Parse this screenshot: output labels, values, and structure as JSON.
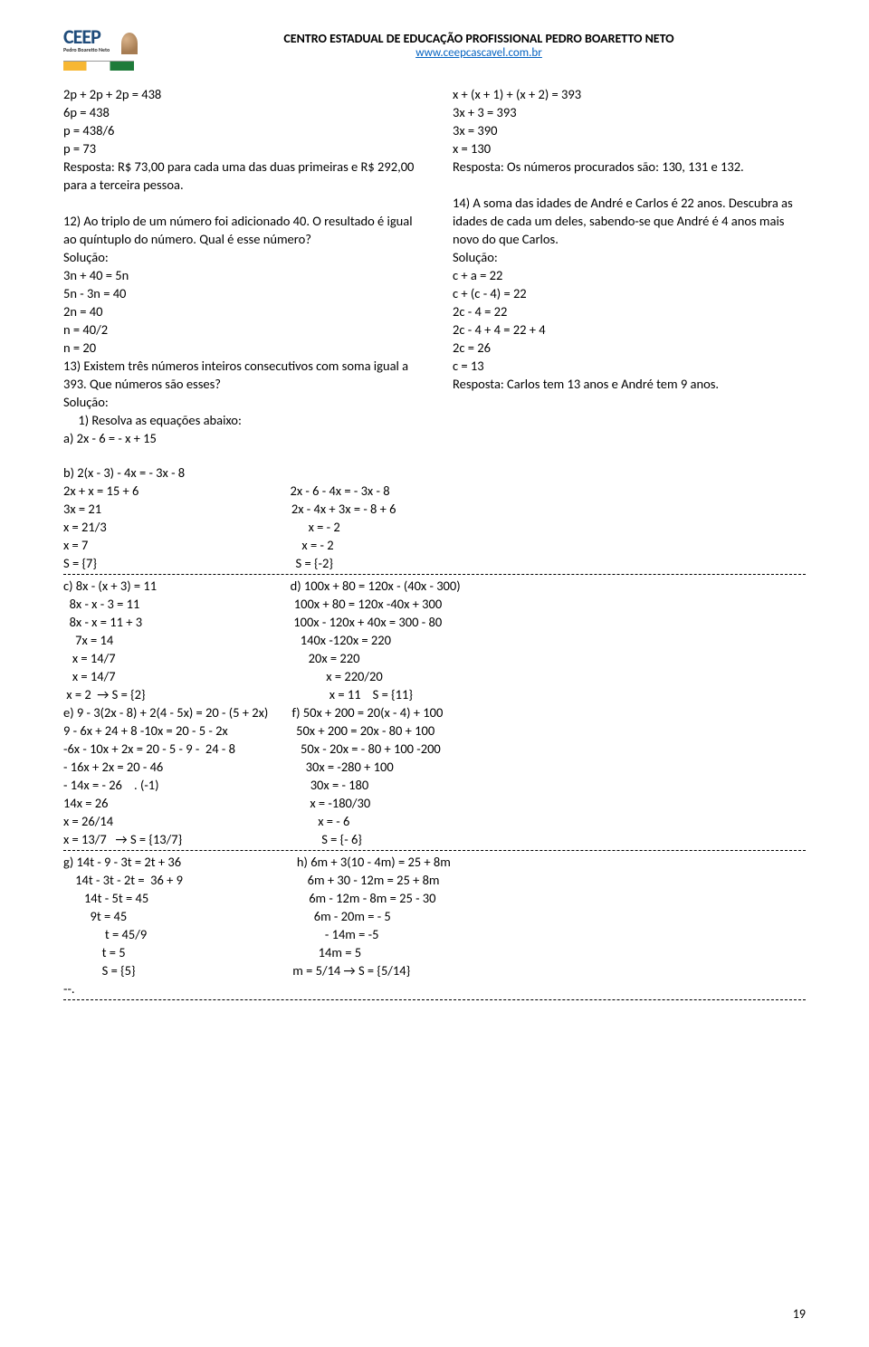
{
  "header": {
    "logo_text": "CEEP",
    "logo_sub": "Pedro Boaretto Neto",
    "title": "CENTRO ESTADUAL DE EDUCAÇÃO PROFISSIONAL PEDRO BOARETTO NETO",
    "url": "www.ceepcascavel.com.br"
  },
  "left_col": "2p + 2p + 2p = 438\n6p = 438\np = 438/6\np = 73\nResposta: R$ 73,00 para cada uma das duas primeiras e R$ 292,00 para a terceira pessoa.\n\n12) Ao triplo de um número foi adicionado 40. O resultado é igual ao quíntuplo do número. Qual é esse número?\nSolução:\n3n + 40 = 5n\n5n - 3n = 40\n2n = 40\nn = 40/2\nn = 20\n13) Existem três números inteiros consecutivos com soma igual a 393. Que números são esses?\nSolução:\n     1) Resolva as equações abaixo:\na) 2x - 6 = - x + 15",
  "right_col": "x + (x + 1) + (x + 2) = 393\n3x + 3 = 393\n3x = 390\nx = 130\nResposta: Os números procurados são: 130, 131 e 132.\n\n14) A soma das idades de André e Carlos é 22 anos. Descubra as idades de cada um deles, sabendo-se que André é 4 anos mais novo do que Carlos.\nSolução:\nc + a = 22\nc + (c - 4) = 22\n2c - 4 = 22\n2c - 4 + 4 = 22 + 4\n2c = 26\nc = 13\nResposta: Carlos tem 13 anos e André tem 9 anos.",
  "block_b": "b) 2(x - 3) - 4x = - 3x - 8\n2x + x = 15 + 6                                                   2x - 6 - 4x = - 3x - 8\n3x = 21                                                                2x - 4x + 3x = - 8 + 6\nx = 21/3                                                                    x = - 2\nx = 7                                                                        x = - 2\nS = {7}                                                                   S = {-2}",
  "block_cd": "c) 8x - (x + 3) = 11                                             d) 100x + 80 = 120x - (40x - 300)\n  8x - x - 3 = 11                                                    100x + 80 = 120x -40x + 300\n  8x - x = 11 + 3                                                   100x - 120x + 40x = 300 - 80\n    7x = 14                                                               140x -120x = 220\n   x = 14/7                                                                 20x = 220\n   x = 14/7                                                                       x = 220/20\n x = 2  → S = {2}                                                              x = 11    S = {11}\ne) 9 - 3(2x - 8) + 2(4 - 5x) = 20 - (5 + 2x)        f) 50x + 200 = 20(x - 4) + 100\n9 - 6x + 24 + 8 -10x = 20 - 5 - 2x                       50x + 200 = 20x - 80 + 100\n-6x - 10x + 2x = 20 - 5 - 9 -  24 - 8                      50x - 20x = - 80 + 100 -200\n- 16x + 2x = 20 - 46                                                30x = -280 + 100\n- 14x = - 26    . (-1)                                                   30x = - 180\n14x = 26                                                                    x = -180/30\nx = 26/14                                                                     x = - 6\nx = 13/7   → S = {13/7}                                               S = {- 6}",
  "block_gh": "g) 14t - 9 - 3t = 2t + 36                                       h) 6m + 3(10 - 4m) = 25 + 8m\n    14t - 3t - 2t =  36 + 9                                          6m + 30 - 12m = 25 + 8m\n       14t - 5t = 45                                                      6m - 12m - 8m = 25 - 30\n         9t = 45                                                               6m - 20m = - 5\n              t = 45/9                                                            - 14m = -5\n             t = 5                                                                 14m = 5\n             S = {5}                                                     m = 5/14 → S = {5/14}\n--.",
  "page_number": "19"
}
